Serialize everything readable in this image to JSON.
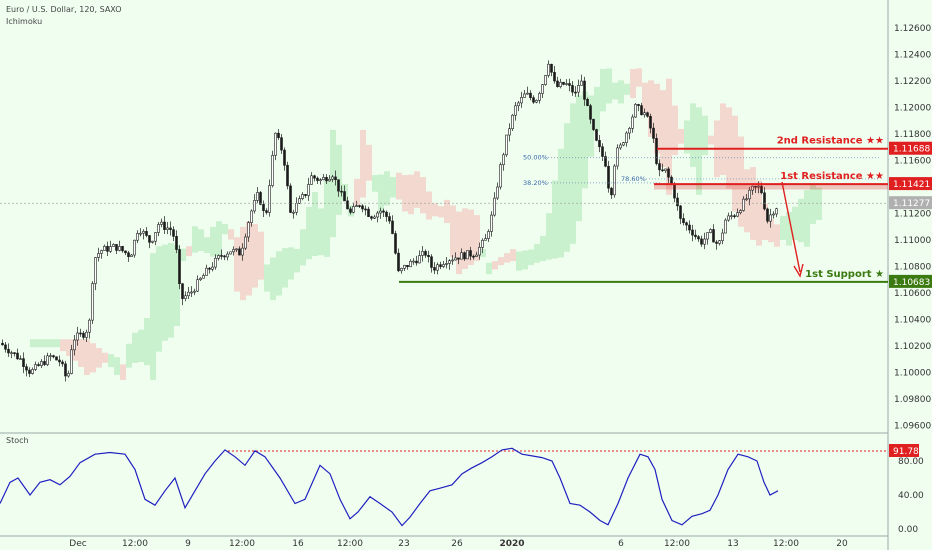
{
  "header": {
    "symbol_line": "Euro / U.S. Dollar, 120, SAXO",
    "indicator": "Ichimoku"
  },
  "stoch_panel": {
    "label": "Stoch"
  },
  "colors": {
    "background": "#f0fef0",
    "candle": "#1b1b1b",
    "cloud_bull": "#a9e5b0",
    "cloud_bear": "#f4b8b4",
    "resistance": "#e02020",
    "support": "#3a7a10",
    "stoch_line": "#2020c0",
    "price_badge": "#b0b0b0",
    "fib_text": "#3a6aa8"
  },
  "chart_data": {
    "type": "candlestick",
    "title": "Euro / U.S. Dollar, 120, SAXO",
    "y_ticks": [
      "1.12600",
      "1.12400",
      "1.12200",
      "1.12000",
      "1.11800",
      "1.11600",
      "1.11400",
      "1.11200",
      "1.11000",
      "1.10800",
      "1.10600",
      "1.10400",
      "1.10200",
      "1.10000",
      "1.09800",
      "1.09600"
    ],
    "ylim": [
      1.0955,
      1.1275
    ],
    "x_ticks": [
      "Dec",
      "12:00",
      "9",
      "12:00",
      "16",
      "12:00",
      "23",
      "26",
      "2020",
      "6",
      "12:00",
      "13",
      "12:00",
      "20"
    ],
    "current_price": "1.11277",
    "levels": [
      {
        "name": "2nd Resistance ★★",
        "value": "1.11688",
        "kind": "resistance"
      },
      {
        "name": "1st Resistance ★★",
        "value": "1.11421",
        "kind": "resistance"
      },
      {
        "name": "1st Support ★",
        "value": "1.10683",
        "kind": "support"
      }
    ],
    "fibonacci": [
      {
        "label": "50.00%",
        "value": 1.1162
      },
      {
        "label": "38.20%",
        "value": 1.1143
      },
      {
        "label": "78.60%",
        "value": 1.1146
      }
    ],
    "price_path": [
      [
        0,
        1.1022
      ],
      [
        20,
        1.101
      ],
      [
        30,
        1.1
      ],
      [
        50,
        1.1012
      ],
      [
        60,
        1.1008
      ],
      [
        67,
        1.0993
      ],
      [
        72,
        1.1025
      ],
      [
        85,
        1.103
      ],
      [
        90,
        1.104
      ],
      [
        93,
        1.1085
      ],
      [
        100,
        1.1092
      ],
      [
        115,
        1.1095
      ],
      [
        130,
        1.1088
      ],
      [
        138,
        1.111
      ],
      [
        150,
        1.1098
      ],
      [
        158,
        1.1112
      ],
      [
        170,
        1.1108
      ],
      [
        175,
        1.11
      ],
      [
        180,
        1.1055
      ],
      [
        190,
        1.106
      ],
      [
        205,
        1.1075
      ],
      [
        220,
        1.1088
      ],
      [
        230,
        1.1092
      ],
      [
        240,
        1.109
      ],
      [
        250,
        1.112
      ],
      [
        258,
        1.1135
      ],
      [
        265,
        1.1115
      ],
      [
        270,
        1.115
      ],
      [
        275,
        1.118
      ],
      [
        283,
        1.1165
      ],
      [
        290,
        1.112
      ],
      [
        300,
        1.113
      ],
      [
        305,
        1.1135
      ],
      [
        310,
        1.1148
      ],
      [
        320,
        1.1145
      ],
      [
        332,
        1.115
      ],
      [
        340,
        1.1135
      ],
      [
        350,
        1.112
      ],
      [
        360,
        1.1128
      ],
      [
        370,
        1.1118
      ],
      [
        380,
        1.1122
      ],
      [
        390,
        1.1115
      ],
      [
        398,
        1.1075
      ],
      [
        405,
        1.108
      ],
      [
        415,
        1.1085
      ],
      [
        425,
        1.109
      ],
      [
        432,
        1.1078
      ],
      [
        445,
        1.1085
      ],
      [
        460,
        1.1088
      ],
      [
        475,
        1.109
      ],
      [
        485,
        1.11
      ],
      [
        492,
        1.112
      ],
      [
        500,
        1.1155
      ],
      [
        507,
        1.118
      ],
      [
        515,
        1.12
      ],
      [
        525,
        1.121
      ],
      [
        535,
        1.1205
      ],
      [
        543,
        1.122
      ],
      [
        548,
        1.1235
      ],
      [
        555,
        1.1215
      ],
      [
        565,
        1.1218
      ],
      [
        575,
        1.121
      ],
      [
        580,
        1.1222
      ],
      [
        588,
        1.1195
      ],
      [
        595,
        1.1175
      ],
      [
        605,
        1.1158
      ],
      [
        610,
        1.113
      ],
      [
        615,
        1.1165
      ],
      [
        620,
        1.117
      ],
      [
        628,
        1.1185
      ],
      [
        635,
        1.12
      ],
      [
        645,
        1.1195
      ],
      [
        652,
        1.118
      ],
      [
        658,
        1.115
      ],
      [
        665,
        1.1152
      ],
      [
        672,
        1.114
      ],
      [
        680,
        1.1115
      ],
      [
        690,
        1.1108
      ],
      [
        700,
        1.1098
      ],
      [
        710,
        1.1105
      ],
      [
        718,
        1.1095
      ],
      [
        725,
        1.1115
      ],
      [
        735,
        1.112
      ],
      [
        745,
        1.113
      ],
      [
        752,
        1.1138
      ],
      [
        760,
        1.114
      ],
      [
        767,
        1.1115
      ],
      [
        775,
        1.1125
      ]
    ],
    "stoch_series": {
      "name": "Stoch",
      "y_ticks": [
        "80.00",
        "40.00",
        "0.00"
      ],
      "ylim": [
        0,
        100
      ],
      "marker_level": "91.78",
      "points": [
        [
          0,
          30
        ],
        [
          10,
          55
        ],
        [
          18,
          60
        ],
        [
          30,
          40
        ],
        [
          40,
          55
        ],
        [
          50,
          58
        ],
        [
          60,
          52
        ],
        [
          70,
          62
        ],
        [
          80,
          78
        ],
        [
          95,
          88
        ],
        [
          110,
          90
        ],
        [
          125,
          88
        ],
        [
          135,
          70
        ],
        [
          145,
          35
        ],
        [
          155,
          28
        ],
        [
          165,
          45
        ],
        [
          175,
          60
        ],
        [
          185,
          25
        ],
        [
          195,
          45
        ],
        [
          205,
          65
        ],
        [
          215,
          80
        ],
        [
          225,
          93
        ],
        [
          235,
          85
        ],
        [
          245,
          75
        ],
        [
          255,
          92
        ],
        [
          265,
          85
        ],
        [
          280,
          60
        ],
        [
          295,
          30
        ],
        [
          305,
          35
        ],
        [
          320,
          75
        ],
        [
          330,
          65
        ],
        [
          340,
          35
        ],
        [
          350,
          12
        ],
        [
          358,
          20
        ],
        [
          370,
          38
        ],
        [
          380,
          30
        ],
        [
          392,
          20
        ],
        [
          402,
          4
        ],
        [
          410,
          14
        ],
        [
          420,
          30
        ],
        [
          430,
          45
        ],
        [
          440,
          48
        ],
        [
          452,
          52
        ],
        [
          462,
          65
        ],
        [
          472,
          72
        ],
        [
          482,
          78
        ],
        [
          492,
          85
        ],
        [
          502,
          93
        ],
        [
          512,
          95
        ],
        [
          522,
          88
        ],
        [
          532,
          86
        ],
        [
          542,
          84
        ],
        [
          552,
          80
        ],
        [
          560,
          60
        ],
        [
          570,
          30
        ],
        [
          580,
          28
        ],
        [
          590,
          20
        ],
        [
          600,
          10
        ],
        [
          608,
          5
        ],
        [
          618,
          30
        ],
        [
          628,
          60
        ],
        [
          640,
          88
        ],
        [
          648,
          85
        ],
        [
          655,
          70
        ],
        [
          662,
          35
        ],
        [
          672,
          10
        ],
        [
          682,
          5
        ],
        [
          692,
          15
        ],
        [
          702,
          18
        ],
        [
          710,
          22
        ],
        [
          718,
          40
        ],
        [
          728,
          70
        ],
        [
          738,
          88
        ],
        [
          748,
          85
        ],
        [
          757,
          80
        ],
        [
          764,
          55
        ],
        [
          770,
          40
        ],
        [
          778,
          45
        ]
      ]
    }
  }
}
